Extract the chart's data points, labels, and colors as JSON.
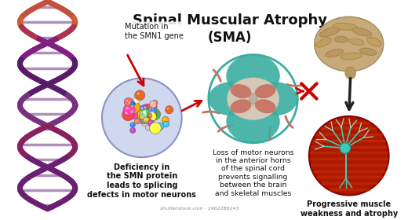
{
  "title_line1": "Spinal Muscular Atrophy",
  "title_line2": "(SMA)",
  "title_fontsize": 13,
  "subtitle_fontsize": 12,
  "bg_color": "#ffffff",
  "label_mutation": "Mutation in\nthe SMN1 gene",
  "label_deficiency": "Deficiency in\nthe SMN protein\nleads to splicing\ndefects in motor neurons",
  "label_loss": "Loss of motor neurons\nin the anterior horns\nof the spinal cord\nprevents signalling\nbetween the brain\nand skeletal muscles",
  "label_progressive": "Progressive muscle\nweakness and atrophy",
  "watermark": "shutterstock.com · 1962286243",
  "arrow_color": "#cc0000",
  "spinal_teal": "#3aada0",
  "spinal_pink": "#c87060",
  "brain_color": "#c8a870",
  "muscle_red": "#bb2200",
  "neuron_teal": "#40c8b8",
  "molecule_circle_color": "#d0d8f0",
  "molecule_circle_edge": "#9090c0",
  "text_fontsize": 7.0,
  "dna_purple": "#7a3580",
  "dna_dark": "#4a2050"
}
